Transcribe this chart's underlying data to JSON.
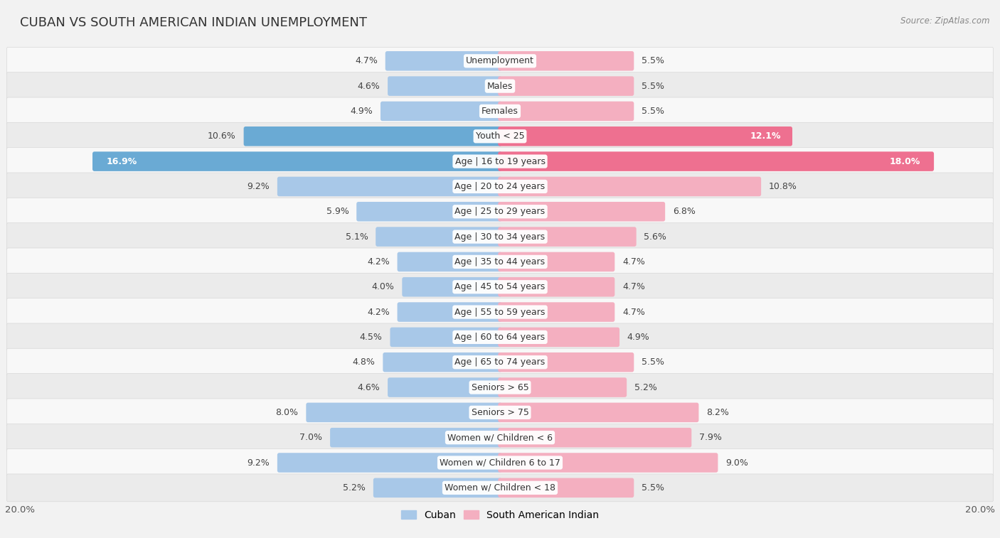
{
  "title": "CUBAN VS SOUTH AMERICAN INDIAN UNEMPLOYMENT",
  "source": "Source: ZipAtlas.com",
  "categories": [
    "Unemployment",
    "Males",
    "Females",
    "Youth < 25",
    "Age | 16 to 19 years",
    "Age | 20 to 24 years",
    "Age | 25 to 29 years",
    "Age | 30 to 34 years",
    "Age | 35 to 44 years",
    "Age | 45 to 54 years",
    "Age | 55 to 59 years",
    "Age | 60 to 64 years",
    "Age | 65 to 74 years",
    "Seniors > 65",
    "Seniors > 75",
    "Women w/ Children < 6",
    "Women w/ Children 6 to 17",
    "Women w/ Children < 18"
  ],
  "cuban": [
    4.7,
    4.6,
    4.9,
    10.6,
    16.9,
    9.2,
    5.9,
    5.1,
    4.2,
    4.0,
    4.2,
    4.5,
    4.8,
    4.6,
    8.0,
    7.0,
    9.2,
    5.2
  ],
  "south_american": [
    5.5,
    5.5,
    5.5,
    12.1,
    18.0,
    10.8,
    6.8,
    5.6,
    4.7,
    4.7,
    4.7,
    4.9,
    5.5,
    5.2,
    8.2,
    7.9,
    9.0,
    5.5
  ],
  "cuban_color": "#a8c8e8",
  "south_american_color": "#f4afc0",
  "highlight_cuban_color": "#6aaad4",
  "highlight_south_color": "#ee7090",
  "highlight_rows": [
    3,
    4
  ],
  "xlim": 20.0,
  "bar_height": 0.62,
  "bg_color": "#f2f2f2",
  "row_colors": [
    "#f8f8f8",
    "#ebebeb"
  ],
  "label_fontsize": 9,
  "category_fontsize": 9,
  "value_fontsize": 9,
  "title_fontsize": 13,
  "legend_cuban_color": "#a8c8e8",
  "legend_sai_color": "#f4afc0"
}
